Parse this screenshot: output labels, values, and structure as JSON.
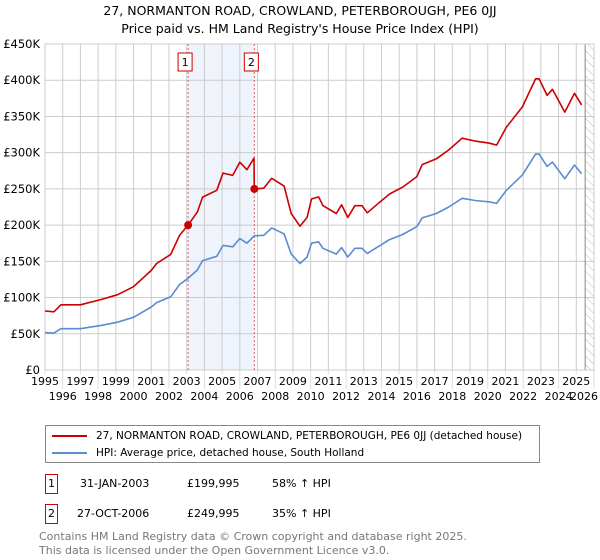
{
  "chart_data": {
    "type": "line",
    "title": "27, NORMANTON ROAD, CROWLAND, PETERBOROUGH, PE6 0JJ",
    "subtitle": "Price paid vs. HM Land Registry's House Price Index (HPI)",
    "xlabel": "",
    "ylabel": "",
    "xlim": [
      1995,
      2026
    ],
    "ylim": [
      0,
      450000
    ],
    "x_ticks": [
      1995,
      1996,
      1997,
      1998,
      1999,
      2000,
      2001,
      2002,
      2003,
      2004,
      2005,
      2006,
      2007,
      2008,
      2009,
      2010,
      2011,
      2012,
      2013,
      2014,
      2015,
      2016,
      2017,
      2018,
      2019,
      2020,
      2021,
      2022,
      2023,
      2024,
      2025,
      2026
    ],
    "y_ticks": [
      0,
      50000,
      100000,
      150000,
      200000,
      250000,
      300000,
      350000,
      400000,
      450000
    ],
    "y_tick_labels": [
      "£0",
      "£50K",
      "£100K",
      "£150K",
      "£200K",
      "£250K",
      "£300K",
      "£350K",
      "£400K",
      "£450K"
    ],
    "grid": true,
    "legend_position": "below",
    "forecast_hatch_start": 2025.5,
    "shaded_range": [
      2003.08,
      2006.82
    ],
    "series": [
      {
        "name": "27, NORMANTON ROAD, CROWLAND, PETERBOROUGH, PE6 0JJ (detached house)",
        "color": "#cc0000",
        "x": [
          1995,
          1995.5,
          1995.9,
          1997,
          1998.2,
          1999.1,
          2000,
          2001,
          2001.3,
          2002.1,
          2002.6,
          2003.08,
          2003.6,
          2003.9,
          2004.7,
          2005.05,
          2005.6,
          2006,
          2006.4,
          2006.8,
          2006.82,
          2007.35,
          2007.8,
          2008.5,
          2008.9,
          2009.4,
          2009.8,
          2010.05,
          2010.45,
          2010.7,
          2011.45,
          2011.75,
          2012.1,
          2012.5,
          2012.9,
          2013.2,
          2013.8,
          2014.45,
          2015.2,
          2016,
          2016.3,
          2017.1,
          2017.8,
          2018.55,
          2019.3,
          2020.1,
          2020.5,
          2021.05,
          2021.95,
          2022.7,
          2022.9,
          2023.35,
          2023.65,
          2024.35,
          2024.9,
          2025.3
        ],
        "y": [
          81400,
          80400,
          90000,
          90000,
          97500,
          104000,
          115000,
          137500,
          147000,
          159600,
          186000,
          199995,
          218000,
          238600,
          248000,
          271800,
          268600,
          286800,
          276500,
          292300,
          249995,
          251000,
          264600,
          253800,
          216000,
          198500,
          210600,
          236000,
          239000,
          226800,
          216000,
          228000,
          210600,
          226800,
          226800,
          217000,
          229500,
          243000,
          252500,
          267000,
          283500,
          291600,
          303800,
          320000,
          316000,
          313000,
          310500,
          335000,
          363000,
          402000,
          402000,
          379000,
          387500,
          356000,
          382000,
          366000
        ]
      },
      {
        "name": "HPI: Average price, detached house, South Holland",
        "color": "#5b8bd0",
        "x": [
          1995,
          1995.5,
          1995.9,
          1997,
          1998.2,
          1999.1,
          2000,
          2001,
          2001.3,
          2002.1,
          2002.6,
          2003.08,
          2003.6,
          2003.9,
          2004.7,
          2005.05,
          2005.6,
          2006,
          2006.4,
          2006.82,
          2007.35,
          2007.8,
          2008.5,
          2008.9,
          2009.4,
          2009.8,
          2010.05,
          2010.45,
          2010.7,
          2011.45,
          2011.75,
          2012.1,
          2012.5,
          2012.9,
          2013.2,
          2013.8,
          2014.45,
          2015.2,
          2016,
          2016.3,
          2017.1,
          2017.8,
          2018.55,
          2019.3,
          2020.1,
          2020.5,
          2021.05,
          2021.95,
          2022.7,
          2022.9,
          2023.35,
          2023.65,
          2024.35,
          2024.9,
          2025.3
        ],
        "y": [
          51500,
          50900,
          57000,
          57000,
          61700,
          66000,
          72800,
          87000,
          93000,
          101000,
          118000,
          126600,
          138000,
          151000,
          157000,
          172000,
          170000,
          181500,
          175000,
          185200,
          186000,
          196000,
          188000,
          160000,
          147000,
          156000,
          175000,
          177000,
          168000,
          160000,
          169000,
          156000,
          168000,
          168000,
          161000,
          170000,
          180000,
          187000,
          198000,
          210000,
          216000,
          225000,
          237000,
          234000,
          232000,
          230000,
          248000,
          269000,
          298000,
          298000,
          281000,
          287000,
          264000,
          283000,
          271000
        ]
      }
    ],
    "sales": [
      {
        "id": "1",
        "x": 2003.08,
        "date": "31-JAN-2003",
        "price": 199995,
        "price_label": "£199,995",
        "hpi_change": "58% ↑ HPI"
      },
      {
        "id": "2",
        "x": 2006.82,
        "date": "27-OCT-2006",
        "price": 249995,
        "price_label": "£249,995",
        "hpi_change": "35% ↑ HPI"
      }
    ]
  },
  "legend": {
    "red_label": "27, NORMANTON ROAD, CROWLAND, PETERBOROUGH, PE6 0JJ (detached house)",
    "blue_label": "HPI: Average price, detached house, South Holland"
  },
  "footer": {
    "line1": "Contains HM Land Registry data © Crown copyright and database right 2025.",
    "line2": "This data is licensed under the Open Government Licence v3.0."
  }
}
